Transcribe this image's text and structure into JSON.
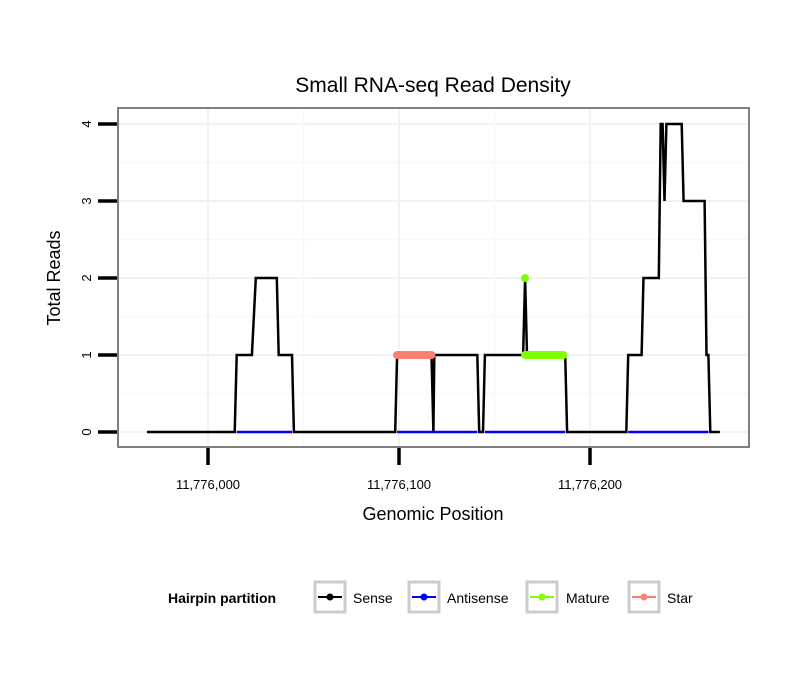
{
  "chart_data": {
    "type": "line",
    "title": "Small RNA-seq Read Density",
    "xlabel": "Genomic Position",
    "ylabel": "Total Reads",
    "xlim": [
      11775967,
      11776278
    ],
    "ylim": [
      -0.2,
      4.2
    ],
    "x_ticks": [
      11776000,
      11776100,
      11776200
    ],
    "x_tick_labels": [
      "11,776,000",
      "11,776,100",
      "11,776,200"
    ],
    "y_ticks": [
      0,
      1,
      2,
      3,
      4
    ],
    "y_tick_labels": [
      "0",
      "1",
      "2",
      "3",
      "4"
    ],
    "grid": true,
    "legend": {
      "title": "Hairpin partition",
      "placement": "bottom",
      "entries": [
        {
          "name": "Sense",
          "color": "#000000"
        },
        {
          "name": "Antisense",
          "color": "#0000ff"
        },
        {
          "name": "Mature",
          "color": "#7fff00"
        },
        {
          "name": "Star",
          "color": "#fa8072"
        }
      ]
    },
    "series": [
      {
        "name": "Sense",
        "color": "#000000",
        "points": [
          [
            11775968,
            0
          ],
          [
            11776014,
            0
          ],
          [
            11776015,
            1
          ],
          [
            11776023,
            1
          ],
          [
            11776025,
            2
          ],
          [
            11776036,
            2
          ],
          [
            11776037,
            1
          ],
          [
            11776044,
            1
          ],
          [
            11776045,
            0
          ],
          [
            11776098,
            0
          ],
          [
            11776099,
            1
          ],
          [
            11776117,
            1
          ],
          [
            11776118,
            0
          ],
          [
            11776118.5,
            1
          ],
          [
            11776141,
            1
          ],
          [
            11776142,
            0
          ],
          [
            11776144,
            0
          ],
          [
            11776145,
            1
          ],
          [
            11776165,
            1
          ],
          [
            11776166,
            2
          ],
          [
            11776167,
            1
          ],
          [
            11776187,
            1
          ],
          [
            11776188,
            0
          ],
          [
            11776219,
            0
          ],
          [
            11776220,
            1
          ],
          [
            11776227,
            1
          ],
          [
            11776228,
            2
          ],
          [
            11776236,
            2
          ],
          [
            11776237,
            4
          ],
          [
            11776238,
            4
          ],
          [
            11776239,
            3
          ],
          [
            11776240,
            4
          ],
          [
            11776248,
            4
          ],
          [
            11776249,
            3
          ],
          [
            11776260,
            3
          ],
          [
            11776261,
            1
          ],
          [
            11776262,
            1
          ],
          [
            11776263,
            0
          ],
          [
            11776268,
            0
          ]
        ]
      },
      {
        "name": "Antisense",
        "color": "#0000ff",
        "segments": [
          [
            [
              11776015,
              0
            ],
            [
              11776044,
              0
            ]
          ],
          [
            [
              11776099,
              0
            ],
            [
              11776141,
              0
            ]
          ],
          [
            [
              11776145,
              0
            ],
            [
              11776187,
              0
            ]
          ],
          [
            [
              11776220,
              0
            ],
            [
              11776262,
              0
            ]
          ]
        ]
      },
      {
        "name": "Mature",
        "color": "#7fff00",
        "segments": [
          [
            [
              11776166,
              2
            ],
            [
              11776166,
              2
            ]
          ],
          [
            [
              11776166,
              1
            ],
            [
              11776186,
              1
            ]
          ]
        ]
      },
      {
        "name": "Star",
        "color": "#fa8072",
        "segments": [
          [
            [
              11776099,
              1
            ],
            [
              11776117,
              1
            ]
          ]
        ]
      }
    ]
  }
}
